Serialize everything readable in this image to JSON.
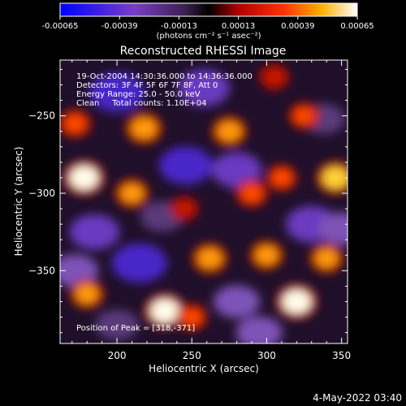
{
  "colorbar": {
    "tick_labels": [
      "-0.00065",
      "-0.00039",
      "-0.00013",
      "0.00013",
      "0.00039",
      "0.00065"
    ],
    "unit_label": "(photons cm⁻² s⁻¹ asec⁻²)",
    "range": [
      -0.00065,
      0.00065
    ]
  },
  "footer": {
    "date": "4-May-2022 03:40"
  },
  "chart_data": {
    "type": "heatmap",
    "title": "Reconstructed RHESSI Image",
    "xlabel": "Heliocentric X (arcsec)",
    "ylabel": "Heliocentric Y (arcsec)",
    "xlim": [
      162,
      354
    ],
    "ylim": [
      -397,
      -214
    ],
    "x_ticks": [
      200,
      250,
      300,
      350
    ],
    "y_ticks": [
      -250,
      -300,
      -350
    ],
    "info_lines": [
      "19-Oct-2004 14:30:36.000 to 14:36:36.000",
      "Detectors: 3F 4F 5F 6F 7F 8F, Att 0",
      "Energy Range: 25.0 - 50.0 keV",
      "Clean     Total counts: 1.10E+04"
    ],
    "peak_label": "Position of Peak = [318,-371]",
    "peak": [
      318,
      -371
    ],
    "hot_spots": [
      {
        "x": 178,
        "y": -290,
        "value": 0.00065
      },
      {
        "x": 232,
        "y": -376,
        "value": 0.00065
      },
      {
        "x": 320,
        "y": -370,
        "value": 0.00065
      },
      {
        "x": 346,
        "y": -290,
        "value": 0.00055
      },
      {
        "x": 218,
        "y": -258,
        "value": 0.0005
      },
      {
        "x": 275,
        "y": -260,
        "value": 0.00045
      },
      {
        "x": 210,
        "y": -300,
        "value": 0.0004
      },
      {
        "x": 262,
        "y": -342,
        "value": 0.00045
      },
      {
        "x": 180,
        "y": -365,
        "value": 0.0004
      },
      {
        "x": 300,
        "y": -340,
        "value": 0.0004
      },
      {
        "x": 340,
        "y": -342,
        "value": 0.0004
      },
      {
        "x": 172,
        "y": -255,
        "value": 0.00035
      },
      {
        "x": 325,
        "y": -250,
        "value": 0.0003
      },
      {
        "x": 290,
        "y": -300,
        "value": 0.00035
      },
      {
        "x": 305,
        "y": -225,
        "value": 0.00025
      },
      {
        "x": 250,
        "y": -380,
        "value": 0.0003
      },
      {
        "x": 310,
        "y": -290,
        "value": 0.0003
      },
      {
        "x": 245,
        "y": -310,
        "value": 0.0002
      }
    ],
    "cold_spots": [
      {
        "x": 200,
        "y": -235,
        "value": -0.00065
      },
      {
        "x": 258,
        "y": -232,
        "value": -0.00055
      },
      {
        "x": 215,
        "y": -345,
        "value": -0.00065
      },
      {
        "x": 185,
        "y": -325,
        "value": -0.0005
      },
      {
        "x": 246,
        "y": -282,
        "value": -0.0006
      },
      {
        "x": 280,
        "y": -285,
        "value": -0.0005
      },
      {
        "x": 330,
        "y": -320,
        "value": -0.00055
      },
      {
        "x": 350,
        "y": -323,
        "value": -0.0004
      },
      {
        "x": 280,
        "y": -370,
        "value": -0.0004
      },
      {
        "x": 295,
        "y": -390,
        "value": -0.0004
      },
      {
        "x": 172,
        "y": -350,
        "value": -0.0004
      },
      {
        "x": 338,
        "y": -252,
        "value": -0.0003
      },
      {
        "x": 230,
        "y": -315,
        "value": -0.0003
      },
      {
        "x": 200,
        "y": -385,
        "value": -0.0003
      }
    ]
  }
}
